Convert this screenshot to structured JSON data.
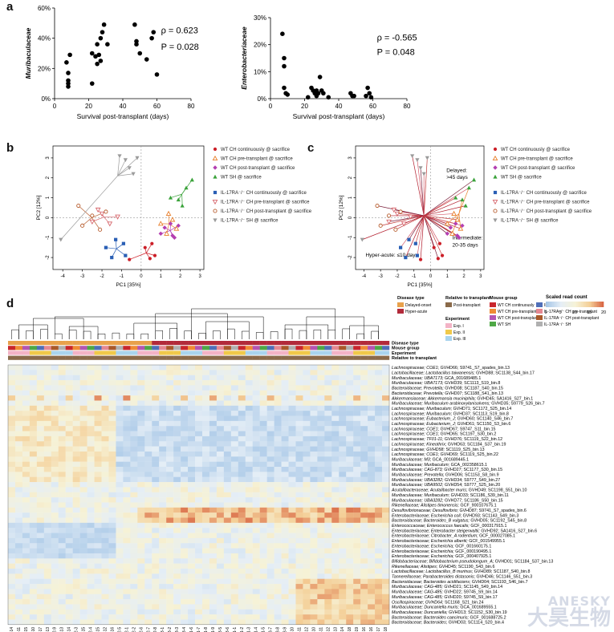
{
  "panel_letters": {
    "a": "a",
    "b": "b",
    "c": "c",
    "d": "d"
  },
  "watermark": {
    "en": "ANESKY",
    "cn": "大昊生物"
  },
  "chart_data": [
    {
      "id": "a1",
      "type": "scatter",
      "xlabel": "Survival post-transplant (days)",
      "ylabel": "Muribaculaceae",
      "xlim": [
        0,
        80
      ],
      "ylim": [
        0,
        60
      ],
      "xticks": [
        0,
        20,
        40,
        60,
        80
      ],
      "yticks": [
        0,
        20,
        40,
        60
      ],
      "ytick_labels": [
        "0%",
        "20%",
        "40%",
        "60%"
      ],
      "annotation_rho": "ρ = 0.623",
      "annotation_p": "P = 0.028",
      "points": [
        [
          7,
          24
        ],
        [
          8,
          17
        ],
        [
          8,
          12
        ],
        [
          8,
          10
        ],
        [
          9,
          29
        ],
        [
          8,
          8
        ],
        [
          22,
          10
        ],
        [
          22,
          30
        ],
        [
          24,
          28
        ],
        [
          25,
          23
        ],
        [
          25,
          36
        ],
        [
          26,
          29
        ],
        [
          27,
          40
        ],
        [
          27,
          25
        ],
        [
          28,
          44
        ],
        [
          29,
          49
        ],
        [
          31,
          36
        ],
        [
          47,
          49
        ],
        [
          48,
          36
        ],
        [
          48,
          38
        ],
        [
          50,
          30
        ],
        [
          54,
          26
        ],
        [
          57,
          40
        ],
        [
          58,
          44
        ],
        [
          60,
          16
        ]
      ]
    },
    {
      "id": "a2",
      "type": "scatter",
      "xlabel": "Survival post-transplant (days)",
      "ylabel": "Enterobacteriaceae",
      "xlim": [
        0,
        80
      ],
      "ylim": [
        0,
        30
      ],
      "xticks": [
        0,
        20,
        40,
        60,
        80
      ],
      "yticks": [
        0,
        10,
        20,
        30
      ],
      "ytick_labels": [
        "0%",
        "10%",
        "20%",
        "30%"
      ],
      "annotation_rho": "ρ = -0.565",
      "annotation_p": "P = 0.048",
      "points": [
        [
          7,
          24
        ],
        [
          8,
          15
        ],
        [
          8,
          12
        ],
        [
          8,
          4
        ],
        [
          9,
          2
        ],
        [
          10,
          1.5
        ],
        [
          22,
          0.5
        ],
        [
          24,
          4
        ],
        [
          25,
          3
        ],
        [
          26,
          2
        ],
        [
          27,
          1
        ],
        [
          27,
          3
        ],
        [
          28,
          2
        ],
        [
          29,
          8
        ],
        [
          30,
          3
        ],
        [
          31,
          2
        ],
        [
          34,
          0.5
        ],
        [
          47,
          2
        ],
        [
          48,
          1
        ],
        [
          49,
          1
        ],
        [
          56,
          1
        ],
        [
          57,
          4
        ],
        [
          58,
          2
        ],
        [
          59,
          0.5
        ]
      ]
    },
    {
      "id": "b",
      "type": "scatter",
      "xlabel": "PC1 [35%]",
      "ylabel": "PC2 [12%]",
      "xlim": [
        -4.5,
        3.2
      ],
      "ylim": [
        -2.6,
        3.6
      ],
      "xticks": [
        -4,
        -3,
        -2,
        -1,
        0,
        1,
        2,
        3
      ],
      "yticks": [
        -2,
        -1,
        0,
        1,
        2,
        3
      ],
      "legend": [
        {
          "name": "WT CH continuously @ sacrifice",
          "color": "#cc1f28",
          "marker": "circle"
        },
        {
          "name": "WT CH pre-transplant @ sacrifice",
          "color": "#e87f2b",
          "marker": "triangle-open"
        },
        {
          "name": "WT CH post-transplant @ sacrifice",
          "color": "#b43fb1",
          "marker": "diamond"
        },
        {
          "name": "WT SH @ sacrifice",
          "color": "#3aa23a",
          "marker": "triangle"
        },
        {
          "name": "IL-17RA⁻/⁻ CH continuously @ sacrifice",
          "color": "#2a5fb5",
          "marker": "square"
        },
        {
          "name": "IL-17RA⁻/⁻ CH pre-transplant @ sacrifice",
          "color": "#d7686e",
          "marker": "triangle-down-open"
        },
        {
          "name": "IL-17RA⁻/⁻ CH post-transplant @ sacrifice",
          "color": "#b75c2d",
          "marker": "circle-open"
        },
        {
          "name": "IL-17RA⁻/⁻ SH @ sacrifice",
          "color": "#9b9b9b",
          "marker": "triangle-down"
        }
      ]
    },
    {
      "id": "c",
      "type": "scatter",
      "xlabel": "PC1 [35%]",
      "ylabel": "PC2 [12%]",
      "xlim": [
        -4.5,
        3.2
      ],
      "ylim": [
        -2.6,
        3.6
      ],
      "xticks": [
        -4,
        -3,
        -2,
        -1,
        0,
        1,
        2,
        3
      ],
      "yticks": [
        -2,
        -1,
        0,
        1,
        2,
        3
      ],
      "annotations": [
        "Delayed: >45 days",
        "Intermediate: 20-35 days",
        "Hyper-acute: ≤10 days"
      ],
      "legend": [
        {
          "name": "WT CH continuously @ sacrifice",
          "color": "#cc1f28",
          "marker": "circle"
        },
        {
          "name": "WT CH pre-transplant @ sacrifice",
          "color": "#e87f2b",
          "marker": "triangle-open"
        },
        {
          "name": "WT CH post-transplant @ sacrifice",
          "color": "#b43fb1",
          "marker": "diamond"
        },
        {
          "name": "WT SH @ sacrifice",
          "color": "#3aa23a",
          "marker": "triangle"
        },
        {
          "name": "IL-17RA⁻/⁻ CH continuously @ sacrifice",
          "color": "#2a5fb5",
          "marker": "square"
        },
        {
          "name": "IL-17RA⁻/⁻ CH pre-transplant @ sacrifice",
          "color": "#d7686e",
          "marker": "triangle-down-open"
        },
        {
          "name": "IL-17RA⁻/⁻ CH post-transplant @ sacrifice",
          "color": "#b75c2d",
          "marker": "circle-open"
        },
        {
          "name": "IL-17RA⁻/⁻ SH @ sacrifice",
          "color": "#9b9b9b",
          "marker": "triangle-down"
        }
      ]
    },
    {
      "id": "d",
      "type": "heatmap",
      "colorbar": {
        "title": "Scaled read count",
        "ticks": [
          0,
          5,
          10,
          15,
          20
        ]
      },
      "annotation_rows": [
        "Disease type",
        "Mouse group",
        "Experiment",
        "Relative to transplant"
      ],
      "legend_groups": [
        {
          "title": "Disease type",
          "items": [
            {
              "name": "Delayed-onset",
              "color": "#e8a14c"
            },
            {
              "name": "Hyper-acute",
              "color": "#b22a3a"
            }
          ]
        },
        {
          "title": "Relative to transplant",
          "items": [
            {
              "name": "Post-transplant",
              "color": "#8a6a4a"
            }
          ]
        },
        {
          "title": "Experiment",
          "items": [
            {
              "name": "Exp. I",
              "color": "#f3b3c6"
            },
            {
              "name": "Exp. II",
              "color": "#f0c94a"
            },
            {
              "name": "Exp. III",
              "color": "#a9d4ee"
            }
          ]
        },
        {
          "title": "Mouse group",
          "items": [
            {
              "name": "WT CH continuously",
              "color": "#c9262c"
            },
            {
              "name": "WT CH pre-transplant",
              "color": "#ef8b35"
            },
            {
              "name": "WT CH post-transplant",
              "color": "#b455b3"
            },
            {
              "name": "WT SH",
              "color": "#4ea846"
            },
            {
              "name": "IL-17RA⁻/⁻ CH continuously",
              "color": "#4f6fb8"
            },
            {
              "name": "IL-17RA⁻/⁻ CH pre-transplant",
              "color": "#e58892"
            },
            {
              "name": "IL-17RA⁻/⁻ CH post-transplant",
              "color": "#a9592a"
            },
            {
              "name": "IL-17RA⁻/⁻ SH",
              "color": "#b0b0b0"
            }
          ]
        }
      ],
      "rows": [
        "Lachnospiraceae; COE1; GVHD66; S9741_S7_spades_bin.13",
        "Lactobacillaceae; Lactobacillus taiwanensis; GVHD88; SC1138_S44_bin.17",
        "Muribaculaceae; UBA7173; GCA_001689485.1",
        "Muribaculaceae; UBA7173; GVHD39; SC1113_S19_bin.8",
        "Bacteroidaceae; Prevotella; GVHD08; SC1187_S40_bin.15",
        "Bacteroidaceae; Prevotella; GVHD07; SC1188_S41_bin.13",
        "Akkermansiaceae; Akkermansia muciniphila; GVHD45; SA1416_S27_bin.1",
        "Muribaculaceae; Muribaculum arabinoxylanisolvens; GVHD35; S9779_S26_bin.7",
        "Lachnospiraceae; Muribaculum; GVHD71; SC1172_S25_bin.14",
        "Lachnospiraceae; Muribaculum; GVHD37; SC1113_S19_bin.8",
        "Lachnospiraceae; Eubacterium_J; GVHD60; SC1140_S46_bin.7",
        "Lachnospiraceae; Eubacterium_J; GVHD61; SC1150_S3_bin.6",
        "Lachnospiraceae; COE1; GVHD67; S9747_S11_bin.15",
        "Lachnospiraceae; COE1; GVHD65; SC1197_S30_bin.2",
        "Lachnospiraceae; TF01-11; GVHD76; SC1119_S22_bin.12",
        "Lachnospiraceae; Kineothrix; GVHD63; SC1184_S37_bin.19",
        "Lachnospiraceae; GVHD58; SC1119_S25_bin.13",
        "Lachnospiraceae; COE1; GVHD69; SC1119_S25_bin.22",
        "Muribaculaceae; M3; GCA_001689445.1",
        "Muribaculaceae; Muribaculum; GCA_002358615.1",
        "Muribaculaceae; CAG-873; GVHD27; SC1177_S30_bin.15",
        "Muribaculaceae; Prevotella; GVHD06; SC1153_S8_bin.9",
        "Muribaculaceae; UBA3282; GVHD34; S9777_S49_bin.27",
        "Muribaculaceae; UBA9502; GVHD54; S9777_S25_bin.20",
        "Acutalibacteraceae; Acutalibacter muris; GVHD49; SC1198_S51_bin.10",
        "Muribaculaceae; Muribaculum; GVHD33; SC1186_S39_bin.11",
        "Muribaculaceae; UBA3282; GVHD77; SC1186_S50_bin.15",
        "Rikenellaceae; Alistipes timonensis; GCF_900107675.1",
        "Desulfovibrionaceae; Desulfovibrio; GVHD87; S9741_S7_spades_bin.6",
        "Enterobacteriaceae; Escherichia coli; GVHD93; SC1143_S49_bin.3",
        "Bacteroidaceae; Bacteroides_B vulgatus; GVHD05; SC1192_S45_bin.8",
        "Enterococcaceae; Enterococcus faecalis; GCF_000317915.1",
        "Enterobacteriaceae; Enterobacter steigerwaltii; GVHD92; SA1416_S27_bin.6",
        "Enterobacteriaceae; Citrobacter_A rodentium; GCF_000027085.1",
        "Enterobacteriaceae; Escherichia albertii; GCF_001549955.1",
        "Enterobacteriaceae; Escherichia; GCF_001660175.1",
        "Enterobacteriaceae; Escherichia; GCF_000190495.1",
        "Enterobacteriaceae; Escherichia; GCF_000407925.1",
        "Bifidobacteriaceae; Bifidobacterium pseudolongum_A; GVHD01; SC1184_S37_bin.13",
        "Rikenellaceae; Alistipes; GVHD45; SC1190_S43_bin.6",
        "Lactobacillaceae; Lactobacillus_B murinus; GVHD89; SC1187_S40_bin.8",
        "Tannerellaceae; Parabacteroides distasonis; GVHD46; SC1146_S51_bin.3",
        "Bacteroidaceae; Bacteroides acidifaciens; GVHD04; SC1193_S46_bin.7",
        "Muribaculaceae; CAG-485; GVHD21; SC1145_S49_bin.14",
        "Muribaculaceae; CAG-485; GVHD22; S9745_S9_bin.14",
        "Muribaculaceae; CAG-485; GVHD20; S9745_S9_bin.17",
        "Oscillospiraceae; GVHD64; SC1168_S21_bin.24",
        "Muribaculaceae; Duncaniella muris; GCA_001689555.1",
        "Muribaculaceae; Duncaniella; GVHD13; SC1152_S30_bin.19",
        "Bacteroidaceae; Bacteroides caecimuris; GCF_001688725.2",
        "Bacteroidaceae; Bacteroides; GVHD03; SC1114_S20_bin.4"
      ],
      "columns": [
        "M2-14",
        "M2-11",
        "M3-15",
        "M2-10",
        "M3-17",
        "M2-13",
        "M2-9",
        "M3-13",
        "M3-14",
        "M2-3",
        "M2-15",
        "M2-4",
        "M1-15",
        "M2-12",
        "M3-16",
        "M2-5",
        "M2-1",
        "M2-2",
        "M2-6",
        "M2-7",
        "M2-8",
        "M3-1",
        "M3-2",
        "M3-3",
        "M3-4",
        "M1-6",
        "M1-7",
        "M1-8",
        "M1-9",
        "M3-5",
        "M3-6",
        "M1-1",
        "M1-2",
        "M1-3",
        "M1-4",
        "M1-5",
        "M3-7",
        "M3-8",
        "M3-9",
        "M3-10",
        "M3-11",
        "M3-12",
        "M1-10",
        "M1-11",
        "M1-12",
        "M1-13",
        "M1-14",
        "M3-18",
        "M3-19",
        "M2-16",
        "M1-16",
        "M1-17",
        "M1-18"
      ]
    }
  ]
}
